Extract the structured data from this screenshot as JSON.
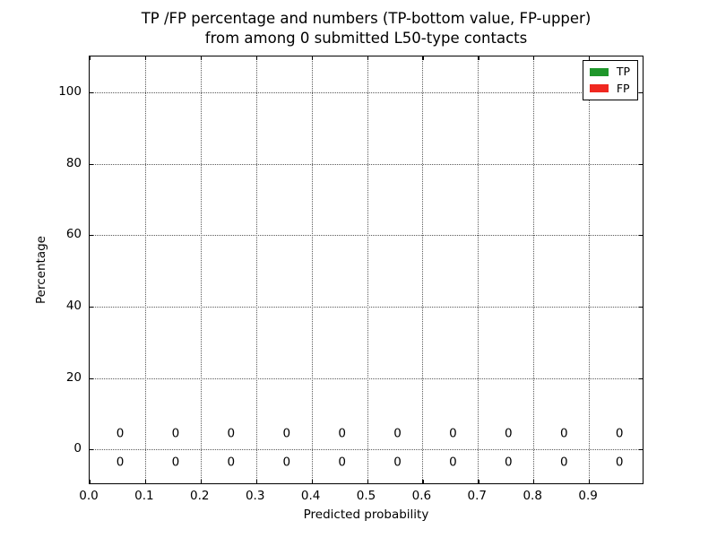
{
  "title": {
    "line1": "TP /FP percentage and numbers (TP-bottom value, FP-upper)",
    "line2": "from among 0 submitted L50-type contacts"
  },
  "chart_data": {
    "type": "bar",
    "title": "TP /FP percentage and numbers (TP-bottom value, FP-upper) from among 0 submitted L50-type contacts",
    "xlabel": "Predicted probability",
    "ylabel": "Percentage",
    "xlim": [
      0.0,
      1.0
    ],
    "ylim": [
      -10,
      110
    ],
    "x_tick_values": [
      0.0,
      0.1,
      0.2,
      0.3,
      0.4,
      0.5,
      0.6,
      0.7,
      0.8,
      0.9
    ],
    "x_tick_labels": [
      "0.0",
      "0.1",
      "0.2",
      "0.3",
      "0.4",
      "0.5",
      "0.6",
      "0.7",
      "0.8",
      "0.9"
    ],
    "y_tick_values": [
      0,
      20,
      40,
      60,
      80,
      100
    ],
    "y_tick_labels": [
      "0",
      "20",
      "40",
      "60",
      "80",
      "100"
    ],
    "grid": true,
    "grid_style": "dotted",
    "legend_position": "upper right",
    "bin_centers": [
      0.055,
      0.155,
      0.255,
      0.355,
      0.455,
      0.555,
      0.655,
      0.755,
      0.855,
      0.955
    ],
    "series": [
      {
        "name": "TP",
        "color": "#1e962a",
        "values": [
          0,
          0,
          0,
          0,
          0,
          0,
          0,
          0,
          0,
          0
        ],
        "annotation_row": "below-zero-line",
        "annotation_y": -3.6
      },
      {
        "name": "FP",
        "color": "#f02820",
        "values": [
          0,
          0,
          0,
          0,
          0,
          0,
          0,
          0,
          0,
          0
        ],
        "annotation_row": "above-zero-line",
        "annotation_y": 4.2
      }
    ]
  }
}
